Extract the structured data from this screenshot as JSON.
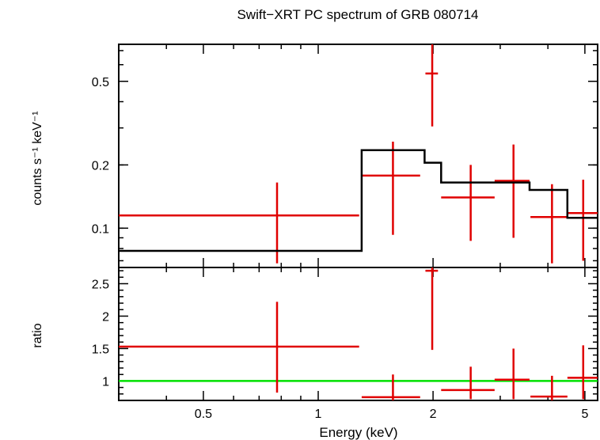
{
  "title": "Swift−XRT PC spectrum of GRB 080714",
  "colors": {
    "data": "#e00000",
    "model": "#000000",
    "unity": "#00e000",
    "axis": "#000000"
  },
  "chart_data": [
    {
      "type": "scatter",
      "panel": "top",
      "ylabel": "counts s⁻¹ keV⁻¹",
      "xscale": "log",
      "yscale": "log",
      "xlim": [
        0.3,
        5.4
      ],
      "ylim": [
        0.065,
        0.75
      ],
      "yticks": [
        {
          "value": 0.1,
          "label": "0.1"
        },
        {
          "value": 0.2,
          "label": "0.2"
        },
        {
          "value": 0.5,
          "label": "0.5"
        }
      ],
      "series": [
        {
          "kind": "data",
          "points": [
            {
              "x": 0.78,
              "xlo": 0.3,
              "xhi": 1.28,
              "y": 0.115,
              "ylo": 0.068,
              "yhi": 0.165
            },
            {
              "x": 1.57,
              "xlo": 1.3,
              "xhi": 1.85,
              "y": 0.178,
              "ylo": 0.093,
              "yhi": 0.258
            },
            {
              "x": 1.99,
              "xlo": 1.91,
              "xhi": 2.06,
              "y": 0.545,
              "ylo": 0.305,
              "yhi": 0.75
            },
            {
              "x": 2.51,
              "xlo": 2.1,
              "xhi": 2.9,
              "y": 0.14,
              "ylo": 0.087,
              "yhi": 0.2
            },
            {
              "x": 3.25,
              "xlo": 2.9,
              "xhi": 3.58,
              "y": 0.168,
              "ylo": 0.09,
              "yhi": 0.25
            },
            {
              "x": 4.1,
              "xlo": 3.6,
              "xhi": 4.5,
              "y": 0.113,
              "ylo": 0.068,
              "yhi": 0.162
            },
            {
              "x": 4.95,
              "xlo": 4.5,
              "xhi": 5.4,
              "y": 0.118,
              "ylo": 0.07,
              "yhi": 0.17
            }
          ]
        },
        {
          "kind": "model-step",
          "steps": [
            {
              "x0": 0.3,
              "x1": 1.3,
              "y": 0.078
            },
            {
              "x0": 1.3,
              "x1": 1.9,
              "y": 0.235
            },
            {
              "x0": 1.9,
              "x1": 2.1,
              "y": 0.205
            },
            {
              "x0": 2.1,
              "x1": 3.58,
              "y": 0.165
            },
            {
              "x0": 3.58,
              "x1": 4.5,
              "y": 0.152
            },
            {
              "x0": 4.5,
              "x1": 5.4,
              "y": 0.112
            }
          ]
        }
      ]
    },
    {
      "type": "scatter",
      "panel": "bottom",
      "ylabel": "ratio",
      "xlabel": "Energy (keV)",
      "xscale": "log",
      "xlim": [
        0.3,
        5.4
      ],
      "ylim": [
        0.7,
        2.75
      ],
      "yticks": [
        {
          "value": 1,
          "label": "1"
        },
        {
          "value": 1.5,
          "label": "1.5"
        },
        {
          "value": 2,
          "label": "2"
        },
        {
          "value": 2.5,
          "label": "2.5"
        }
      ],
      "xticks": [
        {
          "value": 0.5,
          "label": "0.5"
        },
        {
          "value": 1,
          "label": "1"
        },
        {
          "value": 2,
          "label": "2"
        },
        {
          "value": 5,
          "label": "5"
        }
      ],
      "unity": 1,
      "series": [
        {
          "kind": "data",
          "points": [
            {
              "x": 0.78,
              "xlo": 0.3,
              "xhi": 1.28,
              "y": 1.53,
              "ylo": 0.82,
              "yhi": 2.22
            },
            {
              "x": 1.57,
              "xlo": 1.3,
              "xhi": 1.85,
              "y": 0.75,
              "ylo": 0.7,
              "yhi": 1.1
            },
            {
              "x": 1.99,
              "xlo": 1.91,
              "xhi": 2.06,
              "y": 2.7,
              "ylo": 1.48,
              "yhi": 2.75
            },
            {
              "x": 2.51,
              "xlo": 2.1,
              "xhi": 2.9,
              "y": 0.86,
              "ylo": 0.72,
              "yhi": 1.22
            },
            {
              "x": 3.25,
              "xlo": 2.9,
              "xhi": 3.58,
              "y": 1.02,
              "ylo": 0.72,
              "yhi": 1.5
            },
            {
              "x": 4.1,
              "xlo": 3.6,
              "xhi": 4.5,
              "y": 0.76,
              "ylo": 0.7,
              "yhi": 1.08
            },
            {
              "x": 4.95,
              "xlo": 4.5,
              "xhi": 5.4,
              "y": 1.05,
              "ylo": 0.72,
              "yhi": 1.55
            }
          ]
        }
      ]
    }
  ]
}
